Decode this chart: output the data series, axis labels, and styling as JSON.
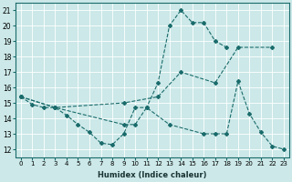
{
  "xlabel": "Humidex (Indice chaleur)",
  "bg_color": "#cce8e8",
  "line_color": "#1a6b6b",
  "xlim": [
    -0.5,
    23.5
  ],
  "ylim": [
    11.5,
    21.5
  ],
  "xticks": [
    0,
    1,
    2,
    3,
    4,
    5,
    6,
    7,
    8,
    9,
    10,
    11,
    12,
    13,
    14,
    15,
    16,
    17,
    18,
    19,
    20,
    21,
    22,
    23
  ],
  "yticks": [
    12,
    13,
    14,
    15,
    16,
    17,
    18,
    19,
    20,
    21
  ],
  "line1": {
    "x": [
      0,
      1,
      2,
      3,
      4,
      5,
      6,
      7,
      8,
      9,
      10,
      11,
      12,
      13,
      14,
      15,
      16,
      17,
      18
    ],
    "y": [
      15.4,
      14.9,
      14.7,
      14.7,
      14.2,
      13.6,
      13.1,
      12.4,
      12.3,
      13.0,
      14.7,
      14.7,
      16.3,
      20.0,
      21.0,
      20.2,
      20.2,
      19.0,
      18.6
    ]
  },
  "line2": {
    "x": [
      0,
      3,
      9,
      12,
      14,
      17,
      19,
      22
    ],
    "y": [
      15.4,
      14.7,
      15.0,
      15.4,
      17.0,
      16.3,
      18.6,
      18.6
    ]
  },
  "line3": {
    "x": [
      0,
      3,
      9,
      10,
      11,
      13,
      16,
      17,
      18,
      19,
      20,
      21,
      22,
      23
    ],
    "y": [
      15.4,
      14.7,
      13.6,
      13.6,
      14.7,
      13.6,
      13.0,
      13.0,
      13.0,
      16.4,
      14.3,
      13.1,
      12.2,
      12.0
    ]
  }
}
